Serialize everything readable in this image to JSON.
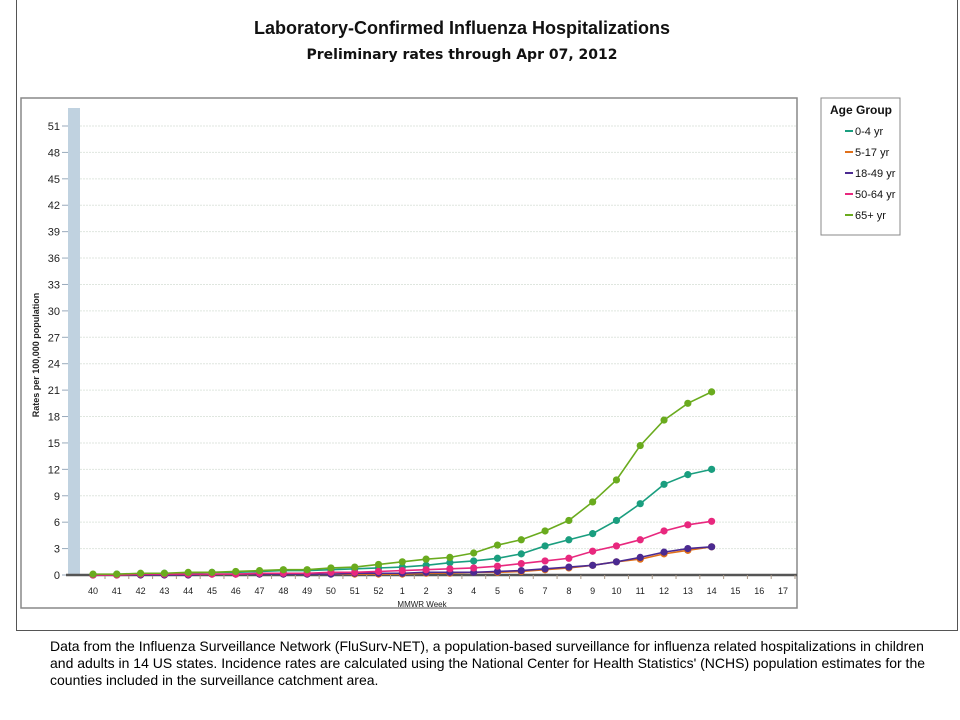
{
  "chart_data": {
    "type": "line",
    "title": "Laboratory-Confirmed Influenza Hospitalizations",
    "subtitle": "Preliminary rates through Apr 07, 2012",
    "xlabel": "MMWR Week",
    "ylabel": "Rates per 100,000 population",
    "ylim": [
      0,
      51
    ],
    "yticks": [
      0,
      3,
      6,
      9,
      12,
      15,
      18,
      21,
      24,
      27,
      30,
      33,
      36,
      39,
      42,
      45,
      48,
      51
    ],
    "categories": [
      "40",
      "41",
      "42",
      "43",
      "44",
      "45",
      "46",
      "47",
      "48",
      "49",
      "50",
      "51",
      "52",
      "1",
      "2",
      "3",
      "4",
      "5",
      "6",
      "7",
      "8",
      "9",
      "10",
      "11",
      "12",
      "13",
      "14",
      "15",
      "16",
      "17"
    ],
    "grid": true,
    "legend": {
      "title": "Age Group",
      "placement": "right"
    },
    "series": [
      {
        "name": "0-4 yr",
        "color": "#1a9e7f",
        "values": [
          0.0,
          0.1,
          0.1,
          0.2,
          0.2,
          0.3,
          0.3,
          0.4,
          0.5,
          0.5,
          0.6,
          0.7,
          0.8,
          0.9,
          1.1,
          1.4,
          1.6,
          1.9,
          2.4,
          3.3,
          4.0,
          4.7,
          6.2,
          8.1,
          10.3,
          11.4,
          12.0,
          null,
          null,
          null
        ]
      },
      {
        "name": "5-17 yr",
        "color": "#e0701a",
        "values": [
          0.0,
          0.0,
          0.0,
          0.0,
          0.0,
          0.1,
          0.1,
          0.1,
          0.1,
          0.1,
          0.1,
          0.1,
          0.1,
          0.1,
          0.2,
          0.2,
          0.3,
          0.3,
          0.4,
          0.6,
          0.8,
          1.1,
          1.5,
          1.8,
          2.4,
          2.8,
          3.2,
          null,
          null,
          null
        ]
      },
      {
        "name": "18-49 yr",
        "color": "#4b2a91",
        "values": [
          0.0,
          0.0,
          0.0,
          0.0,
          0.0,
          0.1,
          0.1,
          0.1,
          0.1,
          0.1,
          0.1,
          0.2,
          0.2,
          0.2,
          0.3,
          0.3,
          0.3,
          0.4,
          0.5,
          0.7,
          0.9,
          1.1,
          1.5,
          2.0,
          2.6,
          3.0,
          3.2,
          null,
          null,
          null
        ]
      },
      {
        "name": "50-64 yr",
        "color": "#e8287e",
        "values": [
          0.0,
          0.0,
          0.1,
          0.1,
          0.1,
          0.1,
          0.1,
          0.2,
          0.2,
          0.2,
          0.3,
          0.3,
          0.4,
          0.5,
          0.6,
          0.7,
          0.8,
          1.0,
          1.3,
          1.6,
          1.9,
          2.7,
          3.3,
          4.0,
          5.0,
          5.7,
          6.1,
          null,
          null,
          null
        ]
      },
      {
        "name": "65+ yr",
        "color": "#6aab1e",
        "values": [
          0.1,
          0.1,
          0.2,
          0.2,
          0.3,
          0.3,
          0.4,
          0.5,
          0.6,
          0.6,
          0.8,
          0.9,
          1.2,
          1.5,
          1.8,
          2.0,
          2.5,
          3.4,
          4.0,
          5.0,
          6.2,
          8.3,
          10.8,
          14.7,
          17.6,
          19.5,
          20.8,
          null,
          null,
          null
        ]
      }
    ]
  },
  "caption": "Data from the Influenza  Surveillance Network (FluSurv-NET),  a population-based surveillance  for influenza  related hospitalizations in children and adults in 14 US states.  Incidence rates are calculated using the National Center for Health Statistics' (NCHS) population estimates for the counties included in the surveillance  catchment area."
}
